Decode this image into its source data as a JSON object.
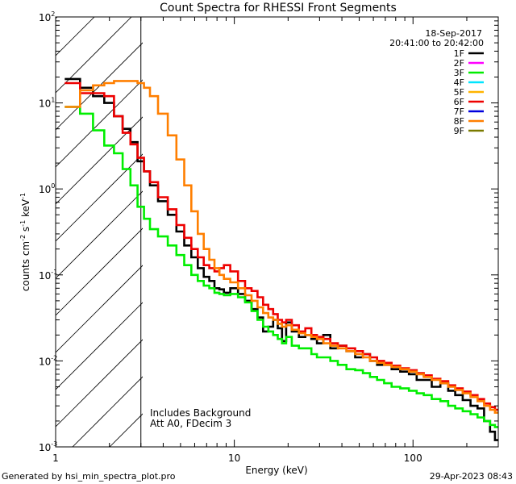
{
  "chart_data": {
    "type": "line",
    "title": "Count Spectra for RHESSI Front Segments",
    "xlabel": "Energy (keV)",
    "ylabel_main": "counts cm",
    "ylabel_sup1": "-2",
    "ylabel_mid1": " s",
    "ylabel_sup2": "-1",
    "ylabel_mid2": " keV",
    "ylabel_sup3": "-1",
    "xscale": "log",
    "yscale": "log",
    "xlim": [
      1,
      300
    ],
    "ylim": [
      0.001,
      100
    ],
    "x_ticks": [
      {
        "value": 1,
        "label": "1"
      },
      {
        "value": 10,
        "label": "10"
      },
      {
        "value": 100,
        "label": "100"
      }
    ],
    "y_ticks": [
      {
        "value": 0.001,
        "base": "10",
        "exp": "-3"
      },
      {
        "value": 0.01,
        "base": "10",
        "exp": "-2"
      },
      {
        "value": 0.1,
        "base": "10",
        "exp": "-1"
      },
      {
        "value": 1,
        "base": "10",
        "exp": "0"
      },
      {
        "value": 10,
        "base": "10",
        "exp": "1"
      },
      {
        "value": 100,
        "base": "10",
        "exp": "2"
      }
    ],
    "hatched_region_keV": [
      1,
      3
    ],
    "cutoff_line_keV": 3,
    "date_label": "18-Sep-2017",
    "time_label": "20:41:00 to 20:42:00",
    "legend": [
      {
        "label": "1F",
        "color": "#000000"
      },
      {
        "label": "2F",
        "color": "#ff00ff"
      },
      {
        "label": "3F",
        "color": "#00ee00"
      },
      {
        "label": "4F",
        "color": "#00e5ff"
      },
      {
        "label": "5F",
        "color": "#ffb400"
      },
      {
        "label": "6F",
        "color": "#ee0000"
      },
      {
        "label": "7F",
        "color": "#0000dd"
      },
      {
        "label": "8F",
        "color": "#ff7f00"
      },
      {
        "label": "9F",
        "color": "#7a7a00"
      }
    ],
    "annotations": [
      "Includes Background",
      "Att A0, FDecim 3"
    ],
    "series": [
      {
        "name": "1F",
        "color": "#000000",
        "points": [
          [
            1.25,
            19
          ],
          [
            1.5,
            15
          ],
          [
            1.75,
            12
          ],
          [
            2,
            10
          ],
          [
            2.25,
            7
          ],
          [
            2.5,
            5
          ],
          [
            2.75,
            3.5
          ],
          [
            3,
            2.1
          ],
          [
            3.25,
            1.6
          ],
          [
            3.5,
            1.1
          ],
          [
            4,
            0.72
          ],
          [
            4.5,
            0.5
          ],
          [
            5,
            0.32
          ],
          [
            5.5,
            0.22
          ],
          [
            6,
            0.16
          ],
          [
            6.5,
            0.12
          ],
          [
            7,
            0.095
          ],
          [
            7.5,
            0.085
          ],
          [
            8,
            0.07
          ],
          [
            8.5,
            0.068
          ],
          [
            9,
            0.062
          ],
          [
            10,
            0.07
          ],
          [
            11,
            0.06
          ],
          [
            12,
            0.05
          ],
          [
            13,
            0.04
          ],
          [
            14,
            0.032
          ],
          [
            15,
            0.022
          ],
          [
            16,
            0.025
          ],
          [
            17,
            0.03
          ],
          [
            18,
            0.024
          ],
          [
            19,
            0.017
          ],
          [
            20,
            0.028
          ],
          [
            22,
            0.022
          ],
          [
            24,
            0.019
          ],
          [
            26,
            0.02
          ],
          [
            28,
            0.018
          ],
          [
            30,
            0.016
          ],
          [
            33,
            0.02
          ],
          [
            36,
            0.014
          ],
          [
            40,
            0.015
          ],
          [
            45,
            0.013
          ],
          [
            50,
            0.011
          ],
          [
            55,
            0.012
          ],
          [
            60,
            0.01
          ],
          [
            66,
            0.009
          ],
          [
            72,
            0.009
          ],
          [
            80,
            0.008
          ],
          [
            90,
            0.0075
          ],
          [
            100,
            0.007
          ],
          [
            110,
            0.006
          ],
          [
            120,
            0.006
          ],
          [
            135,
            0.005
          ],
          [
            150,
            0.0055
          ],
          [
            165,
            0.0045
          ],
          [
            180,
            0.004
          ],
          [
            200,
            0.0035
          ],
          [
            220,
            0.003
          ],
          [
            240,
            0.0028
          ],
          [
            260,
            0.002
          ],
          [
            280,
            0.0015
          ],
          [
            295,
            0.0012
          ]
        ]
      },
      {
        "name": "3F",
        "color": "#00ee00",
        "points": [
          [
            1.25,
            9
          ],
          [
            1.5,
            7.5
          ],
          [
            1.75,
            4.8
          ],
          [
            2,
            3.2
          ],
          [
            2.25,
            2.6
          ],
          [
            2.5,
            1.7
          ],
          [
            2.75,
            1.1
          ],
          [
            3,
            0.62
          ],
          [
            3.25,
            0.45
          ],
          [
            3.5,
            0.34
          ],
          [
            4,
            0.28
          ],
          [
            4.5,
            0.22
          ],
          [
            5,
            0.17
          ],
          [
            5.5,
            0.13
          ],
          [
            6,
            0.1
          ],
          [
            6.5,
            0.085
          ],
          [
            7,
            0.075
          ],
          [
            7.5,
            0.07
          ],
          [
            8,
            0.062
          ],
          [
            8.5,
            0.06
          ],
          [
            9,
            0.058
          ],
          [
            10,
            0.06
          ],
          [
            11,
            0.055
          ],
          [
            12,
            0.048
          ],
          [
            13,
            0.038
          ],
          [
            14,
            0.03
          ],
          [
            15,
            0.025
          ],
          [
            16,
            0.022
          ],
          [
            17,
            0.02
          ],
          [
            18,
            0.018
          ],
          [
            19,
            0.016
          ],
          [
            20,
            0.019
          ],
          [
            22,
            0.015
          ],
          [
            24,
            0.014
          ],
          [
            26,
            0.014
          ],
          [
            28,
            0.012
          ],
          [
            30,
            0.011
          ],
          [
            33,
            0.011
          ],
          [
            36,
            0.01
          ],
          [
            40,
            0.009
          ],
          [
            45,
            0.008
          ],
          [
            50,
            0.0078
          ],
          [
            55,
            0.0072
          ],
          [
            60,
            0.0065
          ],
          [
            66,
            0.006
          ],
          [
            72,
            0.0055
          ],
          [
            80,
            0.005
          ],
          [
            90,
            0.0048
          ],
          [
            100,
            0.0045
          ],
          [
            110,
            0.0042
          ],
          [
            120,
            0.004
          ],
          [
            135,
            0.0036
          ],
          [
            150,
            0.0034
          ],
          [
            165,
            0.003
          ],
          [
            180,
            0.0028
          ],
          [
            200,
            0.0026
          ],
          [
            220,
            0.0024
          ],
          [
            240,
            0.0022
          ],
          [
            260,
            0.002
          ],
          [
            280,
            0.0018
          ],
          [
            295,
            0.0017
          ]
        ]
      },
      {
        "name": "6F",
        "color": "#ee0000",
        "points": [
          [
            1.25,
            17
          ],
          [
            1.5,
            13
          ],
          [
            1.75,
            13
          ],
          [
            2,
            12
          ],
          [
            2.25,
            7
          ],
          [
            2.5,
            4.5
          ],
          [
            2.75,
            3.3
          ],
          [
            3,
            2.3
          ],
          [
            3.25,
            1.6
          ],
          [
            3.5,
            1.2
          ],
          [
            4,
            0.8
          ],
          [
            4.5,
            0.58
          ],
          [
            5,
            0.38
          ],
          [
            5.5,
            0.27
          ],
          [
            6,
            0.2
          ],
          [
            6.5,
            0.16
          ],
          [
            7,
            0.13
          ],
          [
            7.5,
            0.12
          ],
          [
            8,
            0.11
          ],
          [
            8.5,
            0.12
          ],
          [
            9,
            0.13
          ],
          [
            10,
            0.11
          ],
          [
            11,
            0.085
          ],
          [
            12,
            0.07
          ],
          [
            13,
            0.065
          ],
          [
            14,
            0.055
          ],
          [
            15,
            0.045
          ],
          [
            16,
            0.04
          ],
          [
            17,
            0.035
          ],
          [
            18,
            0.03
          ],
          [
            19,
            0.028
          ],
          [
            20,
            0.03
          ],
          [
            22,
            0.026
          ],
          [
            24,
            0.022
          ],
          [
            26,
            0.024
          ],
          [
            28,
            0.02
          ],
          [
            30,
            0.019
          ],
          [
            33,
            0.018
          ],
          [
            36,
            0.016
          ],
          [
            40,
            0.015
          ],
          [
            45,
            0.014
          ],
          [
            50,
            0.013
          ],
          [
            55,
            0.012
          ],
          [
            60,
            0.011
          ],
          [
            66,
            0.01
          ],
          [
            72,
            0.0095
          ],
          [
            80,
            0.0088
          ],
          [
            90,
            0.0082
          ],
          [
            100,
            0.0078
          ],
          [
            110,
            0.0072
          ],
          [
            120,
            0.0068
          ],
          [
            135,
            0.0062
          ],
          [
            150,
            0.0058
          ],
          [
            165,
            0.0052
          ],
          [
            180,
            0.0048
          ],
          [
            200,
            0.0044
          ],
          [
            220,
            0.004
          ],
          [
            240,
            0.0036
          ],
          [
            260,
            0.0032
          ],
          [
            280,
            0.0029
          ],
          [
            295,
            0.0027
          ]
        ]
      },
      {
        "name": "8F",
        "color": "#ff7f00",
        "points": [
          [
            1.25,
            9
          ],
          [
            1.5,
            14
          ],
          [
            1.75,
            16
          ],
          [
            2,
            17
          ],
          [
            2.25,
            18
          ],
          [
            2.5,
            18
          ],
          [
            2.75,
            18
          ],
          [
            3,
            17
          ],
          [
            3.25,
            15
          ],
          [
            3.5,
            12
          ],
          [
            4,
            7.5
          ],
          [
            4.5,
            4.2
          ],
          [
            5,
            2.2
          ],
          [
            5.5,
            1.1
          ],
          [
            6,
            0.55
          ],
          [
            6.5,
            0.3
          ],
          [
            7,
            0.2
          ],
          [
            7.5,
            0.15
          ],
          [
            8,
            0.12
          ],
          [
            8.5,
            0.1
          ],
          [
            9,
            0.09
          ],
          [
            10,
            0.082
          ],
          [
            11,
            0.07
          ],
          [
            12,
            0.058
          ],
          [
            13,
            0.05
          ],
          [
            14,
            0.042
          ],
          [
            15,
            0.036
          ],
          [
            16,
            0.032
          ],
          [
            17,
            0.03
          ],
          [
            18,
            0.027
          ],
          [
            19,
            0.025
          ],
          [
            20,
            0.026
          ],
          [
            22,
            0.023
          ],
          [
            24,
            0.021
          ],
          [
            26,
            0.02
          ],
          [
            28,
            0.019
          ],
          [
            30,
            0.018
          ],
          [
            33,
            0.016
          ],
          [
            36,
            0.015
          ],
          [
            40,
            0.014
          ],
          [
            45,
            0.013
          ],
          [
            50,
            0.012
          ],
          [
            55,
            0.011
          ],
          [
            60,
            0.01
          ],
          [
            66,
            0.0095
          ],
          [
            72,
            0.009
          ],
          [
            80,
            0.0085
          ],
          [
            90,
            0.008
          ],
          [
            100,
            0.0075
          ],
          [
            110,
            0.007
          ],
          [
            120,
            0.0065
          ],
          [
            135,
            0.006
          ],
          [
            150,
            0.0055
          ],
          [
            165,
            0.005
          ],
          [
            180,
            0.0046
          ],
          [
            200,
            0.0042
          ],
          [
            220,
            0.0038
          ],
          [
            240,
            0.0034
          ],
          [
            260,
            0.003
          ],
          [
            280,
            0.0027
          ],
          [
            295,
            0.0025
          ]
        ]
      }
    ]
  },
  "footer": {
    "generated_by": "Generated by hsi_min_spectra_plot.pro",
    "timestamp": "29-Apr-2023 08:43"
  }
}
